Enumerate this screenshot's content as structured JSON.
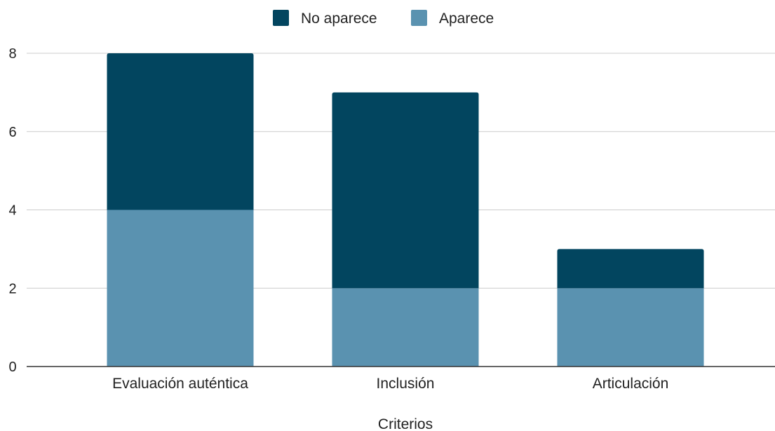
{
  "chart_data": {
    "type": "bar",
    "stacked": true,
    "categories": [
      "Evaluación auténtica",
      "Inclusión",
      "Articulación"
    ],
    "series": [
      {
        "name": "Aparece",
        "values": [
          4,
          2,
          2
        ],
        "color": "#5a92b0"
      },
      {
        "name": "No aparece",
        "values": [
          4,
          5,
          1
        ],
        "color": "#02455f"
      }
    ],
    "legend_order": [
      "No aparece",
      "Aparece"
    ],
    "legend_position": "top-center",
    "xlabel": "Criterios",
    "ylabel": "",
    "ylim": [
      0,
      8
    ],
    "yticks": [
      0,
      2,
      4,
      6,
      8
    ],
    "grid": true
  }
}
